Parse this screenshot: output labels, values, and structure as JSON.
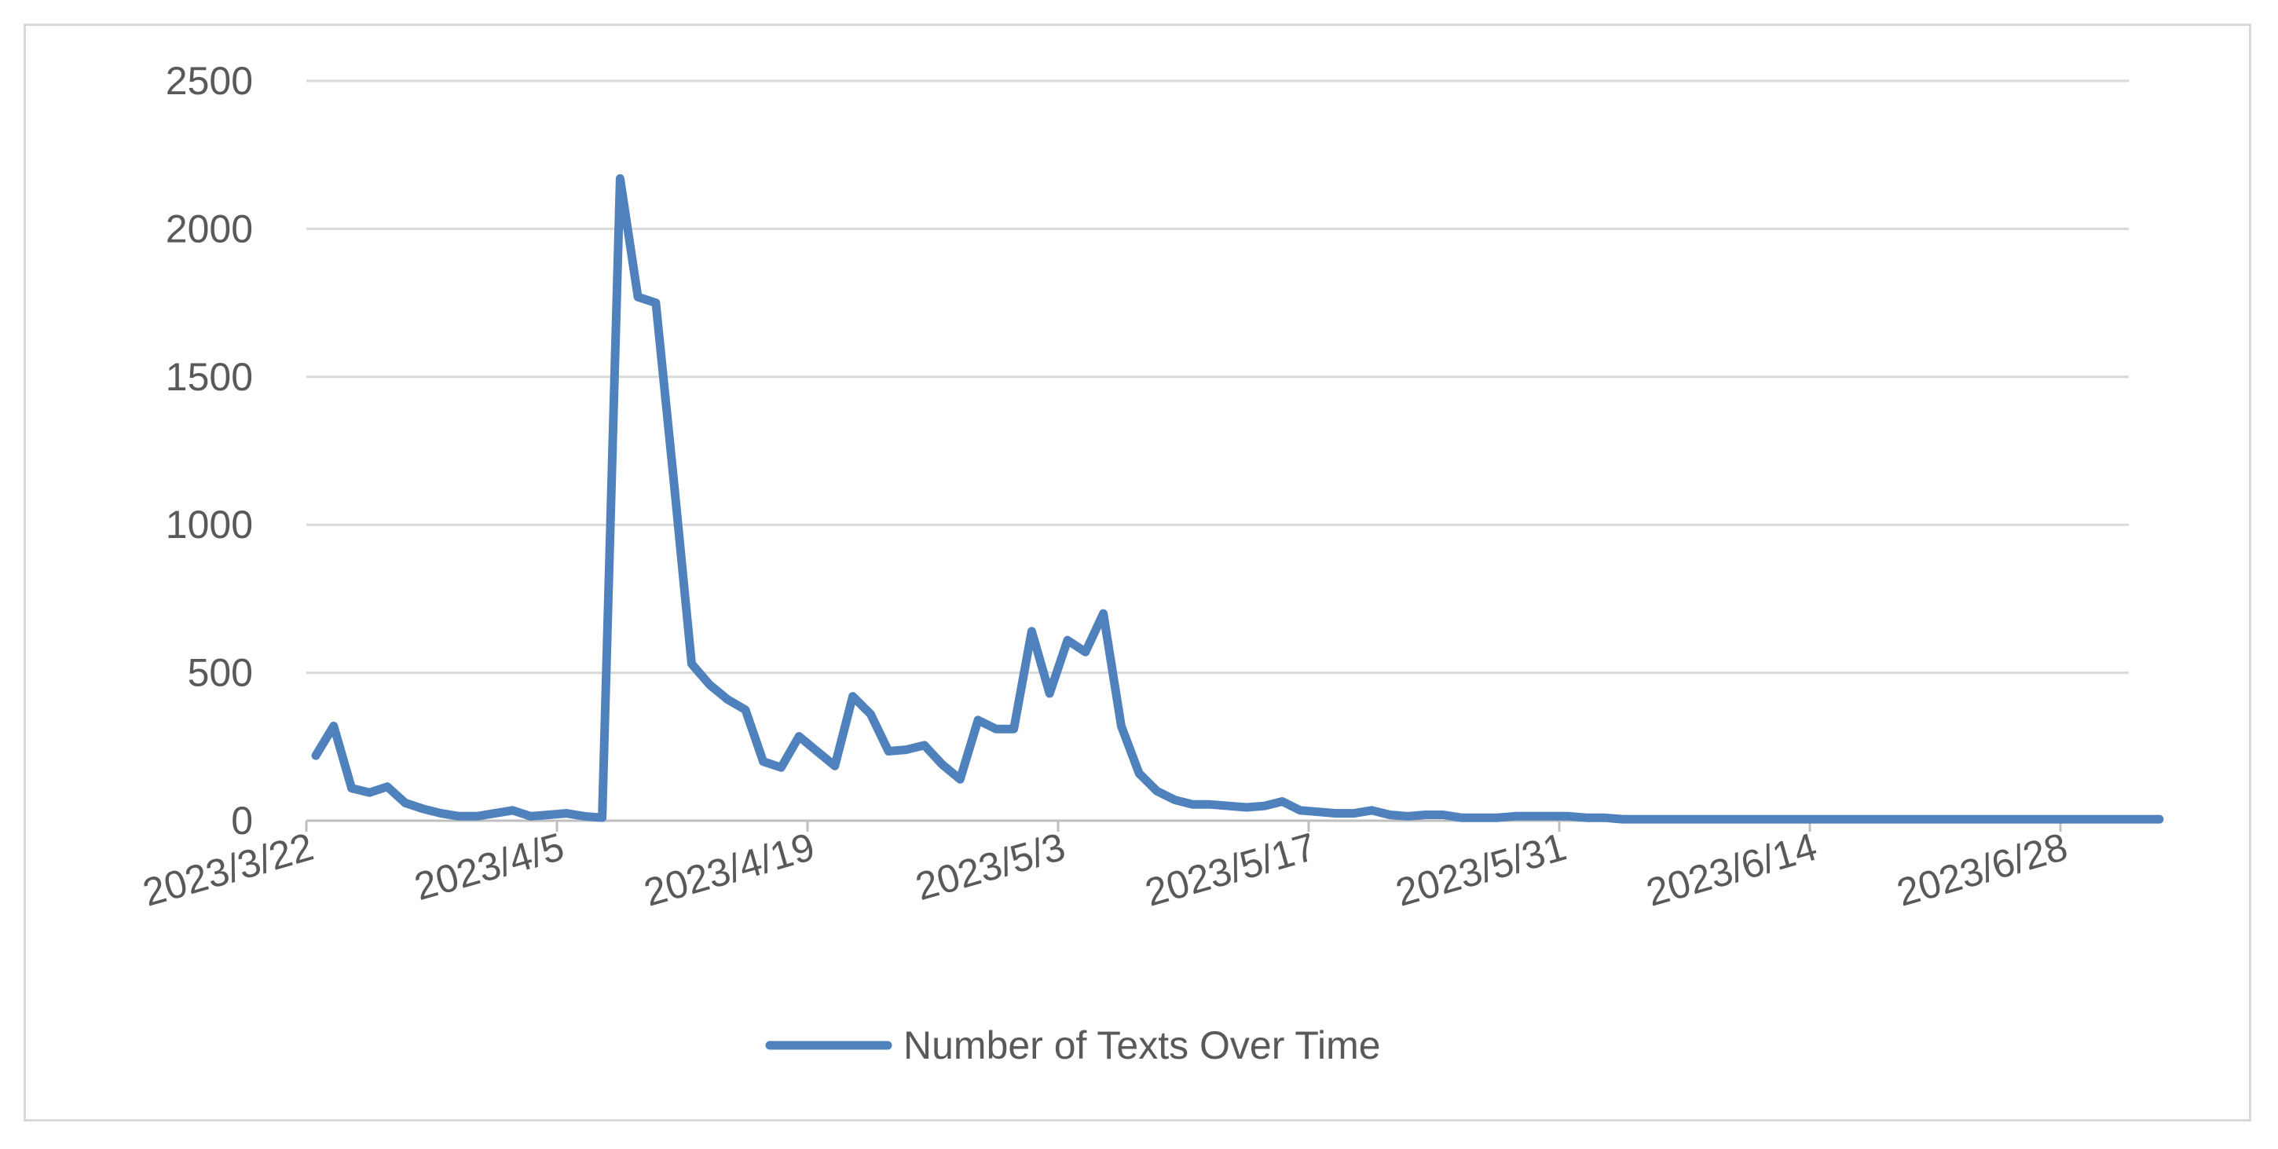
{
  "chart_data": {
    "type": "line",
    "title": "",
    "xlabel": "",
    "ylabel": "",
    "ylim": [
      0,
      2500
    ],
    "y_ticks": [
      0,
      500,
      1000,
      1500,
      2000,
      2500
    ],
    "x_tick_labels": [
      "2023/3/22",
      "2023/4/5",
      "2023/4/19",
      "2023/5/3",
      "2023/5/17",
      "2023/5/31",
      "2023/6/14",
      "2023/6/28"
    ],
    "grid": "horizontal",
    "legend_position": "bottom",
    "colors": {
      "series": "#4f81bd",
      "grid": "#d9d9d9",
      "axis": "#bfbfbf",
      "text": "#595959"
    },
    "series": [
      {
        "name": "Number of Texts Over Time",
        "x": [
          "2023/3/22",
          "2023/3/23",
          "2023/3/24",
          "2023/3/25",
          "2023/3/26",
          "2023/3/27",
          "2023/3/28",
          "2023/3/29",
          "2023/3/30",
          "2023/3/31",
          "2023/4/1",
          "2023/4/2",
          "2023/4/3",
          "2023/4/4",
          "2023/4/5",
          "2023/4/6",
          "2023/4/7",
          "2023/4/8",
          "2023/4/9",
          "2023/4/10",
          "2023/4/11",
          "2023/4/12",
          "2023/4/13",
          "2023/4/14",
          "2023/4/15",
          "2023/4/16",
          "2023/4/17",
          "2023/4/18",
          "2023/4/19",
          "2023/4/20",
          "2023/4/21",
          "2023/4/22",
          "2023/4/23",
          "2023/4/24",
          "2023/4/25",
          "2023/4/26",
          "2023/4/27",
          "2023/4/28",
          "2023/4/29",
          "2023/4/30",
          "2023/5/1",
          "2023/5/2",
          "2023/5/3",
          "2023/5/4",
          "2023/5/5",
          "2023/5/6",
          "2023/5/7",
          "2023/5/8",
          "2023/5/9",
          "2023/5/10",
          "2023/5/11",
          "2023/5/12",
          "2023/5/13",
          "2023/5/14",
          "2023/5/15",
          "2023/5/16",
          "2023/5/17",
          "2023/5/18",
          "2023/5/19",
          "2023/5/20",
          "2023/5/21",
          "2023/5/22",
          "2023/5/23",
          "2023/5/24",
          "2023/5/25",
          "2023/5/26",
          "2023/5/27",
          "2023/5/28",
          "2023/5/29",
          "2023/5/30",
          "2023/5/31",
          "2023/6/1",
          "2023/6/2",
          "2023/6/3",
          "2023/6/4",
          "2023/6/5",
          "2023/6/6",
          "2023/6/7",
          "2023/6/8",
          "2023/6/9",
          "2023/6/10",
          "2023/6/11",
          "2023/6/12",
          "2023/6/13",
          "2023/6/14",
          "2023/6/15",
          "2023/6/16",
          "2023/6/17",
          "2023/6/18",
          "2023/6/19",
          "2023/6/20",
          "2023/6/21",
          "2023/6/22",
          "2023/6/23",
          "2023/6/24",
          "2023/6/25",
          "2023/6/26",
          "2023/6/27",
          "2023/6/28",
          "2023/6/29",
          "2023/6/30",
          "2023/7/1",
          "2023/7/2",
          "2023/7/3"
        ],
        "values": [
          220,
          320,
          110,
          95,
          115,
          60,
          40,
          25,
          15,
          15,
          25,
          35,
          15,
          20,
          25,
          15,
          10,
          2170,
          1770,
          1750,
          1150,
          530,
          460,
          410,
          375,
          200,
          180,
          285,
          235,
          185,
          420,
          360,
          235,
          240,
          255,
          190,
          140,
          340,
          310,
          310,
          640,
          430,
          610,
          570,
          700,
          320,
          160,
          100,
          70,
          55,
          55,
          50,
          45,
          50,
          65,
          35,
          30,
          25,
          25,
          35,
          20,
          15,
          20,
          20,
          10,
          10,
          10,
          15,
          15,
          15,
          15,
          10,
          10,
          5,
          5,
          5,
          5,
          5,
          5,
          5,
          5,
          5,
          5,
          5,
          5,
          5,
          5,
          5,
          5,
          5,
          5,
          5,
          5,
          5,
          5,
          5,
          5,
          5,
          5,
          5,
          5,
          5,
          5,
          5
        ]
      }
    ]
  }
}
